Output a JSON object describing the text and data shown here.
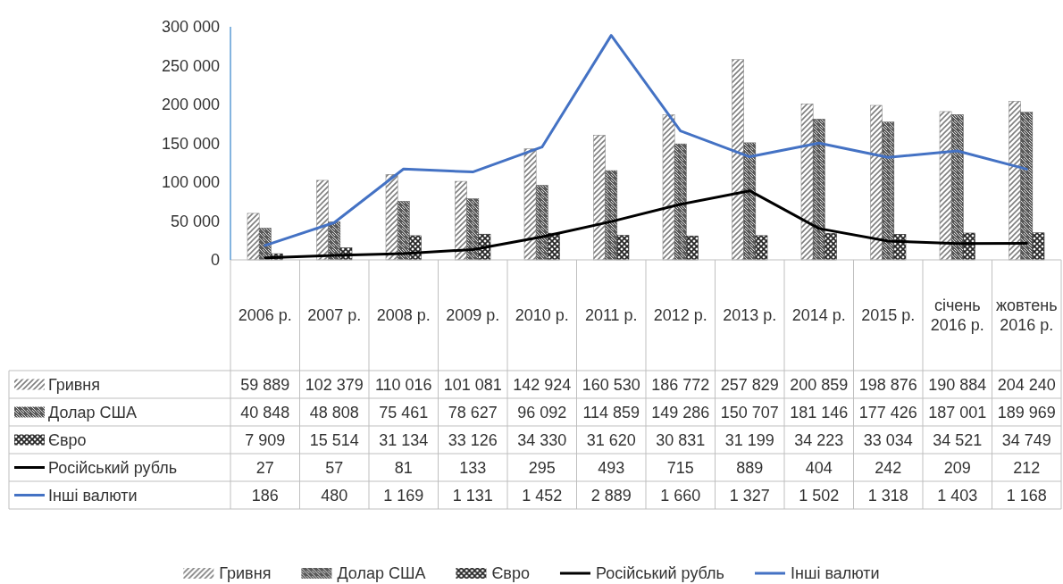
{
  "chart_data": {
    "type": "bar",
    "categories": [
      "2006 р.",
      "2007 р.",
      "2008 р.",
      "2009 р.",
      "2010 р.",
      "2011 р.",
      "2012 р.",
      "2013 р.",
      "2014 р.",
      "2015 р.",
      "січень 2016 р.",
      "жовтень 2016 р."
    ],
    "series": [
      {
        "name": "Гривня",
        "type": "bar",
        "color": "#7f7f7f",
        "values": [
          59889,
          102379,
          110016,
          101081,
          142924,
          160530,
          186772,
          257829,
          200859,
          198876,
          190884,
          204240
        ]
      },
      {
        "name": "Долар США",
        "type": "bar",
        "color": "#595959",
        "values": [
          40848,
          48808,
          75461,
          78627,
          96092,
          114859,
          149286,
          150707,
          181146,
          177426,
          187001,
          189969
        ]
      },
      {
        "name": "Євро",
        "type": "bar",
        "color": "#262626",
        "values": [
          7909,
          15514,
          31134,
          33126,
          34330,
          31620,
          30831,
          31199,
          34223,
          33034,
          34521,
          34749
        ]
      },
      {
        "name": "Російський рубль",
        "type": "line",
        "axis": "y2",
        "color": "#000000",
        "values": [
          27,
          57,
          81,
          133,
          295,
          493,
          715,
          889,
          404,
          242,
          209,
          212
        ]
      },
      {
        "name": "Інші валюти",
        "type": "line",
        "axis": "y2",
        "color": "#4472c4",
        "values": [
          186,
          480,
          1169,
          1131,
          1452,
          2889,
          1660,
          1327,
          1502,
          1318,
          1403,
          1168
        ]
      }
    ],
    "ylim": [
      0,
      300000
    ],
    "yticks": [
      {
        "value": 0,
        "label": "0"
      },
      {
        "value": 50000,
        "label": "50 000"
      },
      {
        "value": 100000,
        "label": "100 000"
      },
      {
        "value": 150000,
        "label": "150 000"
      },
      {
        "value": 200000,
        "label": "200 000"
      },
      {
        "value": 250000,
        "label": "250 000"
      },
      {
        "value": 300000,
        "label": "300 000"
      }
    ],
    "y2lim": [
      0,
      3000
    ],
    "tick_labels": "y",
    "data_labels": true,
    "grid": false,
    "legend": "bottom"
  }
}
